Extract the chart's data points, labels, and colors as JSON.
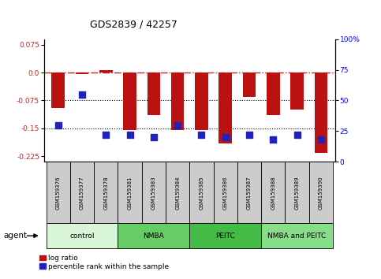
{
  "title": "GDS2839 / 42257",
  "samples": [
    "GSM159376",
    "GSM159377",
    "GSM159378",
    "GSM159381",
    "GSM159383",
    "GSM159384",
    "GSM159385",
    "GSM159386",
    "GSM159387",
    "GSM159388",
    "GSM159389",
    "GSM159390"
  ],
  "log_ratio": [
    -0.095,
    -0.005,
    0.007,
    -0.155,
    -0.115,
    -0.155,
    -0.155,
    -0.19,
    -0.065,
    -0.115,
    -0.1,
    -0.215
  ],
  "percentile_rank": [
    30,
    55,
    22,
    22,
    20,
    30,
    22,
    20,
    22,
    18,
    22,
    18
  ],
  "groups": [
    {
      "label": "control",
      "start": 0,
      "end": 3,
      "color": "#d8f5d8"
    },
    {
      "label": "NMBA",
      "start": 3,
      "end": 6,
      "color": "#66cc66"
    },
    {
      "label": "PEITC",
      "start": 6,
      "end": 9,
      "color": "#44bb44"
    },
    {
      "label": "NMBA and PEITC",
      "start": 9,
      "end": 12,
      "color": "#88dd88"
    }
  ],
  "ylim_left": [
    -0.24,
    0.09
  ],
  "ylim_right": [
    0,
    100
  ],
  "bar_color": "#bb1111",
  "dot_color": "#2222bb",
  "hline_color": "#cc2222",
  "dotted_line_color": "#000000",
  "yticks_left": [
    0.075,
    0.0,
    -0.075,
    -0.15,
    -0.225
  ],
  "yticks_right": [
    100,
    75,
    50,
    25,
    0
  ],
  "bar_width": 0.55,
  "dot_size": 28,
  "sample_box_color": "#cccccc",
  "legend_items": [
    "log ratio",
    "percentile rank within the sample"
  ]
}
